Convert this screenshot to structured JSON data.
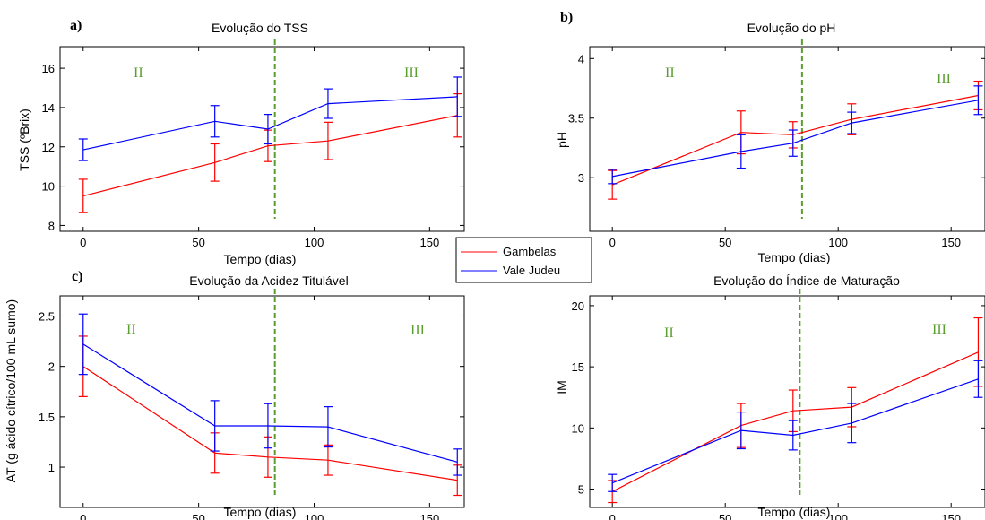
{
  "colors": {
    "gambelas": "#ff0000",
    "vale": "#0000ff",
    "divider": "#5a9e2f"
  },
  "legend": {
    "entries": [
      "Gambelas",
      "Vale Judeu"
    ]
  },
  "phase_labels": [
    "II",
    "III"
  ],
  "chart_data": [
    {
      "panel": "a)",
      "type": "line",
      "title": "Evolução do TSS",
      "xlabel": "Tempo (dias)",
      "ylabel": "TSS (ºBrix)",
      "xlim": [
        -10,
        165
      ],
      "ylim": [
        7.7,
        17.1
      ],
      "xticks": [
        0,
        50,
        100,
        150
      ],
      "yticks": [
        8,
        10,
        12,
        14,
        16
      ],
      "ytick_labels": [
        "8",
        "10",
        "12",
        "14",
        "16"
      ],
      "phase_divider_x": 83,
      "x": [
        0,
        57,
        80,
        106,
        162
      ],
      "series": [
        {
          "name": "Gambelas",
          "values": [
            9.5,
            11.2,
            12.05,
            12.3,
            13.6
          ],
          "err": [
            0.85,
            0.95,
            0.8,
            0.95,
            1.1
          ]
        },
        {
          "name": "Vale Judeu",
          "values": [
            11.85,
            13.3,
            12.9,
            14.2,
            14.55
          ],
          "err": [
            0.55,
            0.8,
            0.75,
            0.75,
            1.0
          ]
        }
      ]
    },
    {
      "panel": "b)",
      "type": "line",
      "title": "Evolução do pH",
      "xlabel": "Tempo (dias)",
      "ylabel": "pH",
      "xlim": [
        -10,
        165
      ],
      "ylim": [
        2.55,
        4.1
      ],
      "xticks": [
        0,
        50,
        100,
        150
      ],
      "yticks": [
        3,
        3.5,
        4
      ],
      "ytick_labels": [
        "3",
        "3.5",
        "4"
      ],
      "phase_divider_x": 84,
      "x": [
        0,
        57,
        80,
        106,
        162
      ],
      "series": [
        {
          "name": "Gambelas",
          "values": [
            2.94,
            3.38,
            3.36,
            3.49,
            3.69
          ],
          "err": [
            0.12,
            0.18,
            0.11,
            0.13,
            0.12
          ]
        },
        {
          "name": "Vale Judeu",
          "values": [
            3.01,
            3.22,
            3.29,
            3.46,
            3.65
          ],
          "err": [
            0.06,
            0.14,
            0.11,
            0.09,
            0.12
          ]
        }
      ]
    },
    {
      "panel": "c)",
      "type": "line",
      "title": "Evolução da Acidez Titulável",
      "xlabel": "Tempo (dias)",
      "ylabel": "AT (g ácido cítrico/100 mL sumo)",
      "xlim": [
        -10,
        165
      ],
      "ylim": [
        0.6,
        2.7
      ],
      "xticks": [
        0,
        50,
        100,
        150
      ],
      "yticks": [
        1,
        1.5,
        2,
        2.5
      ],
      "ytick_labels": [
        "1",
        "1.5",
        "2",
        "2.5"
      ],
      "phase_divider_x": 83,
      "x": [
        0,
        57,
        80,
        106,
        162
      ],
      "series": [
        {
          "name": "Gambelas",
          "values": [
            2.0,
            1.14,
            1.1,
            1.07,
            0.87
          ],
          "err": [
            0.3,
            0.2,
            0.2,
            0.15,
            0.15
          ]
        },
        {
          "name": "Vale Judeu",
          "values": [
            2.22,
            1.41,
            1.41,
            1.4,
            1.05
          ],
          "err": [
            0.3,
            0.25,
            0.22,
            0.2,
            0.13
          ]
        }
      ]
    },
    {
      "panel": "d)",
      "type": "line",
      "title": "Evolução do Índice de Maturação",
      "xlabel": "Tempo (dias)",
      "ylabel": "IM",
      "xlim": [
        -10,
        165
      ],
      "ylim": [
        3.5,
        20.8
      ],
      "xticks": [
        0,
        50,
        100,
        150
      ],
      "yticks": [
        5,
        10,
        15,
        20
      ],
      "ytick_labels": [
        "5",
        "10",
        "15",
        "20"
      ],
      "phase_divider_x": 83,
      "x": [
        0,
        57,
        80,
        106,
        162
      ],
      "series": [
        {
          "name": "Gambelas",
          "values": [
            4.8,
            10.2,
            11.4,
            11.7,
            16.2
          ],
          "err": [
            0.9,
            1.8,
            1.7,
            1.6,
            2.8
          ]
        },
        {
          "name": "Vale Judeu",
          "values": [
            5.5,
            9.8,
            9.4,
            10.4,
            14.0
          ],
          "err": [
            0.7,
            1.5,
            1.2,
            1.6,
            1.5
          ]
        }
      ]
    }
  ]
}
